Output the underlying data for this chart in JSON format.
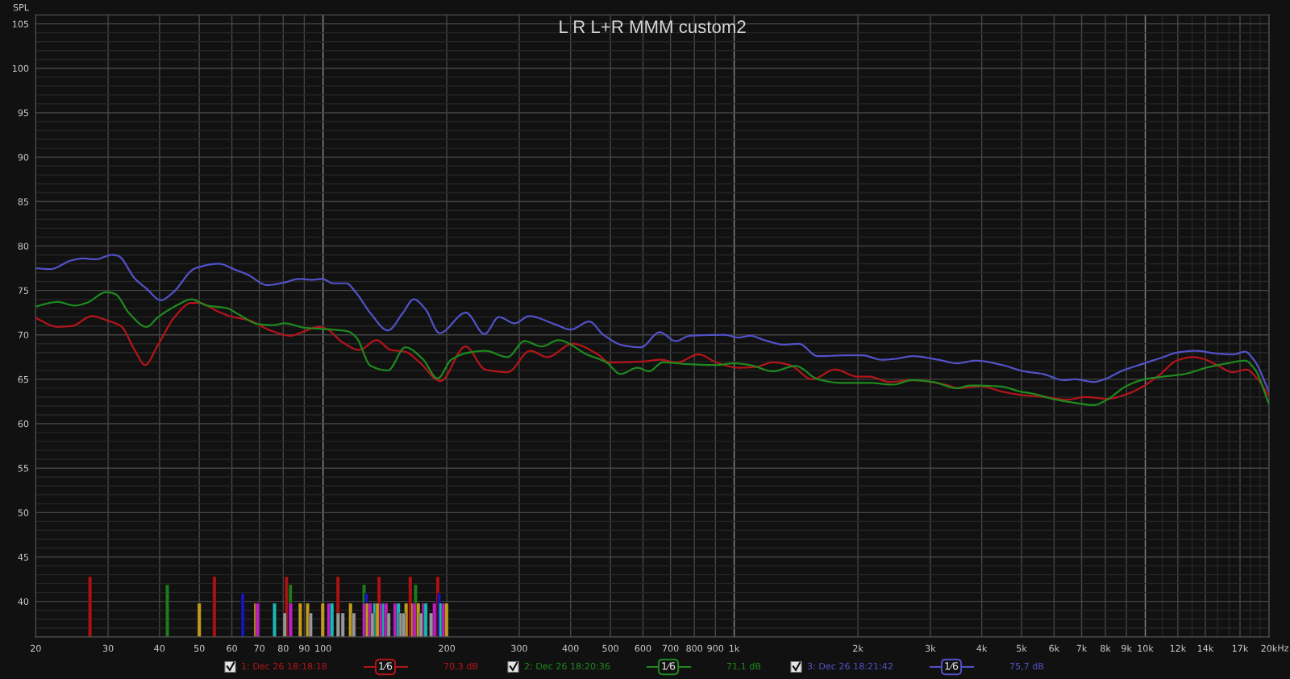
{
  "chart_data": {
    "type": "line",
    "title": "L R L+R MMM custom2",
    "ylabel": "SPL",
    "xlabel": "Hz",
    "log": "x",
    "xlim": [
      20,
      20000
    ],
    "ylim": [
      36,
      106
    ],
    "grid": true,
    "legend": "bottom",
    "xticks": [
      20,
      30,
      40,
      50,
      60,
      70,
      80,
      90,
      100,
      200,
      300,
      400,
      500,
      600,
      700,
      800,
      900,
      {
        "value": 1000,
        "label": "1k"
      },
      {
        "value": 2000,
        "label": "2k"
      },
      {
        "value": 3000,
        "label": "3k"
      },
      {
        "value": 4000,
        "label": "4k"
      },
      {
        "value": 5000,
        "label": "5k"
      },
      {
        "value": 6000,
        "label": "6k"
      },
      {
        "value": 7000,
        "label": "7k"
      },
      {
        "value": 8000,
        "label": "8k"
      },
      {
        "value": 9000,
        "label": "9k"
      },
      {
        "value": 10000,
        "label": "10k"
      },
      {
        "value": 11000,
        "label": null
      },
      {
        "value": 12000,
        "label": "12k"
      },
      {
        "value": 13000,
        "label": null
      },
      {
        "value": 14000,
        "label": "14k"
      },
      {
        "value": 15000,
        "label": null
      },
      {
        "value": 16000,
        "label": null
      },
      {
        "value": 17000,
        "label": "17k"
      },
      {
        "value": 18000,
        "label": null
      },
      {
        "value": 19000,
        "label": null
      },
      {
        "value": 20000,
        "label": "20k"
      }
    ],
    "yticks": [
      {
        "value": 37,
        "label": null
      },
      {
        "value": 38,
        "label": null
      },
      {
        "value": 39,
        "label": null
      },
      40,
      {
        "value": 41,
        "label": null
      },
      {
        "value": 42,
        "label": null
      },
      {
        "value": 43,
        "label": null
      },
      {
        "value": 44,
        "label": null
      },
      45,
      {
        "value": 46,
        "label": null
      },
      {
        "value": 47,
        "label": null
      },
      {
        "value": 48,
        "label": null
      },
      {
        "value": 49,
        "label": null
      },
      50,
      {
        "value": 51,
        "label": null
      },
      {
        "value": 52,
        "label": null
      },
      {
        "value": 53,
        "label": null
      },
      {
        "value": 54,
        "label": null
      },
      55,
      {
        "value": 56,
        "label": null
      },
      {
        "value": 57,
        "label": null
      },
      {
        "value": 58,
        "label": null
      },
      {
        "value": 59,
        "label": null
      },
      60,
      {
        "value": 61,
        "label": null
      },
      {
        "value": 62,
        "label": null
      },
      {
        "value": 63,
        "label": null
      },
      {
        "value": 64,
        "label": null
      },
      65,
      {
        "value": 66,
        "label": null
      },
      {
        "value": 67,
        "label": null
      },
      {
        "value": 68,
        "label": null
      },
      {
        "value": 69,
        "label": null
      },
      70,
      {
        "value": 71,
        "label": null
      },
      {
        "value": 72,
        "label": null
      },
      {
        "value": 73,
        "label": null
      },
      {
        "value": 74,
        "label": null
      },
      75,
      {
        "value": 76,
        "label": null
      },
      {
        "value": 77,
        "label": null
      },
      {
        "value": 78,
        "label": null
      },
      {
        "value": 79,
        "label": null
      },
      80,
      {
        "value": 81,
        "label": null
      },
      {
        "value": 82,
        "label": null
      },
      {
        "value": 83,
        "label": null
      },
      {
        "value": 84,
        "label": null
      },
      85,
      {
        "value": 86,
        "label": null
      },
      {
        "value": 87,
        "label": null
      },
      {
        "value": 88,
        "label": null
      },
      {
        "value": 89,
        "label": null
      },
      90,
      {
        "value": 91,
        "label": null
      },
      {
        "value": 92,
        "label": null
      },
      {
        "value": 93,
        "label": null
      },
      {
        "value": 94,
        "label": null
      },
      95,
      {
        "value": 96,
        "label": null
      },
      {
        "value": 97,
        "label": null
      },
      {
        "value": 98,
        "label": null
      },
      {
        "value": 99,
        "label": null
      },
      100,
      {
        "value": 101,
        "label": null
      },
      {
        "value": 102,
        "label": null
      },
      {
        "value": 103,
        "label": null
      },
      {
        "value": 104,
        "label": null
      },
      105
    ],
    "annotations": [
      "1⁄6",
      "70,3 dB",
      "1⁄6",
      "71,1 dB",
      "1⁄6",
      "75,7 dB"
    ],
    "series": [
      {
        "name": "1: Dec 26 18:18:18",
        "color": "#b3151a",
        "x": [
          20,
          22.6,
          24.5,
          27.4,
          29.9,
          32.2,
          34.9,
          36.9,
          39.7,
          43.7,
          47.8,
          49.7,
          55.7,
          59.4,
          66.5,
          74.4,
          83.3,
          88.8,
          97.8,
          102.6,
          111.2,
          122.5,
          134.9,
          146.2,
          158.4,
          171.8,
          193,
          222,
          248,
          281,
          319,
          351,
          405,
          466,
          497,
          600,
          660,
          726,
          819,
          905,
          1027,
          1129,
          1242,
          1366,
          1549,
          1758,
          1994,
          2122,
          2393,
          2718,
          3328,
          3482,
          3987,
          4494,
          5066,
          5715,
          6444,
          7158,
          8073,
          9100,
          9958,
          10896,
          11924,
          13048,
          13854,
          14932,
          16342,
          17616,
          18706,
          20000
        ],
        "values": [
          71.9,
          70.9,
          71.0,
          72.1,
          71.6,
          71.0,
          68.2,
          66.6,
          68.9,
          72.1,
          73.6,
          73.6,
          72.6,
          72.1,
          71.6,
          70.5,
          69.9,
          70.3,
          70.9,
          70.6,
          69.2,
          68.3,
          69.4,
          68.3,
          68.1,
          66.9,
          64.8,
          68.7,
          66.1,
          65.8,
          68.2,
          67.5,
          69.0,
          67.8,
          66.9,
          67.0,
          67.2,
          66.9,
          67.8,
          66.9,
          66.3,
          66.4,
          66.9,
          66.6,
          65.0,
          66.1,
          65.3,
          65.3,
          64.7,
          64.9,
          64.3,
          64.0,
          64.2,
          63.6,
          63.2,
          63.0,
          62.7,
          63.0,
          62.8,
          63.4,
          64.3,
          65.6,
          67.1,
          67.5,
          67.3,
          66.6,
          65.8,
          66.1,
          65.1,
          63.1
        ]
      },
      {
        "name": "2: Dec 26 18:20:36",
        "color": "#1e8a1e",
        "x": [
          20,
          22.6,
          24.9,
          26.6,
          29.7,
          31.2,
          33.8,
          37.2,
          39.7,
          44.4,
          47.8,
          52.2,
          58.4,
          62.3,
          69.7,
          75.6,
          80.6,
          90.2,
          104.3,
          114.8,
          120.5,
          130.6,
          143.8,
          158.5,
          174.6,
          190,
          205,
          225.6,
          248,
          281,
          309,
          340,
          374,
          438,
          489,
          529,
          582,
          620,
          671,
          773,
          905,
          996,
          1094,
          1242,
          1409,
          1599,
          1814,
          2122,
          2429,
          2718,
          3043,
          3482,
          3754,
          4426,
          4990,
          5300,
          6068,
          6638,
          7489,
          8073,
          8966,
          9958,
          11062,
          12474,
          14066,
          15862,
          17483,
          18426,
          20000
        ],
        "values": [
          73.2,
          73.7,
          73.3,
          73.6,
          74.8,
          74.6,
          72.4,
          70.9,
          72.0,
          73.4,
          74.0,
          73.3,
          73.0,
          72.3,
          71.2,
          71.1,
          71.3,
          70.8,
          70.6,
          70.4,
          69.7,
          66.5,
          66.0,
          68.6,
          67.3,
          65.1,
          67.2,
          68.0,
          68.2,
          67.5,
          69.3,
          68.7,
          69.4,
          67.8,
          66.9,
          65.6,
          66.3,
          65.9,
          66.9,
          66.7,
          66.6,
          66.8,
          66.6,
          65.9,
          66.5,
          65.0,
          64.6,
          64.6,
          64.4,
          64.9,
          64.7,
          64.0,
          64.3,
          64.2,
          63.6,
          63.4,
          62.7,
          62.4,
          62.1,
          62.7,
          64.2,
          65.0,
          65.3,
          65.6,
          66.3,
          66.8,
          67.1,
          66.2,
          62.2
        ]
      },
      {
        "name": "3: Dec 26 18:21:42",
        "color": "#5252c8",
        "x": [
          20,
          21.7,
          24.5,
          26.1,
          27.9,
          30.7,
          31.7,
          34.9,
          37.2,
          40.3,
          43.0,
          48.9,
          55.7,
          61.3,
          65.4,
          73.2,
          80.6,
          87.4,
          93.9,
          99.3,
          106,
          113.9,
          120.5,
          130.6,
          143.8,
          156,
          166.2,
          177.4,
          192,
          222.6,
          247,
          267.8,
          292.5,
          317,
          366,
          400,
          444,
          481,
          539,
          593,
          659,
          720,
          780,
          946,
          1026,
          1094,
          1185,
          1326,
          1437,
          1596,
          1890,
          2047,
          2290,
          2466,
          2718,
          3135,
          3482,
          3868,
          4494,
          5066,
          5628,
          6346,
          6740,
          7489,
          7950,
          8834,
          9958,
          11062,
          11924,
          13244,
          14932,
          16342,
          17483,
          18426,
          20000
        ],
        "values": [
          77.5,
          77.4,
          78.4,
          78.6,
          78.5,
          79.0,
          78.9,
          76.3,
          75.2,
          73.9,
          74.7,
          77.5,
          78.0,
          77.3,
          76.8,
          75.6,
          75.9,
          76.3,
          76.2,
          76.3,
          75.8,
          75.8,
          74.7,
          72.4,
          70.5,
          72.4,
          74.0,
          72.9,
          70.2,
          72.5,
          70.1,
          72.0,
          71.3,
          72.1,
          71.2,
          70.6,
          71.5,
          70.0,
          68.8,
          68.6,
          70.3,
          69.3,
          69.9,
          70.0,
          69.7,
          69.9,
          69.4,
          68.9,
          69.0,
          67.6,
          67.7,
          67.7,
          67.2,
          67.3,
          67.6,
          67.2,
          66.8,
          67.1,
          66.6,
          65.9,
          65.6,
          64.9,
          65.0,
          64.7,
          65.0,
          66.0,
          66.8,
          67.5,
          68.0,
          68.2,
          67.9,
          67.8,
          68.1,
          67.1,
          63.6
        ]
      },
      {
        "type": "bar",
        "x": [
          27.1,
          41.8,
          50.0,
          54.4,
          63.8,
          68.6,
          69.3,
          76.2,
          80.7,
          81.5,
          83.3,
          83.4,
          88.0,
          91.7,
          93.3,
          99.8,
          103.3,
          105.1,
          108.7,
          108.8,
          111.7,
          116.6,
          118.8,
          125.8,
          125.9,
          127.5,
          128.1,
          130.2,
          131.8,
          133.6,
          135.6,
          136.8,
          138.5,
          140.6,
          142.3,
          144.4,
          149.7,
          152.5,
          154.6,
          157.1,
          159.2,
          162.9,
          165.3,
          167.0,
          167.9,
          170.4,
          173.0,
          175.6,
          177.7,
          183.1,
          186.5,
          190.1,
          191.6,
          193.5,
          196.5,
          199.7
        ],
        "values": [
          42.8,
          41.9,
          39.8,
          42.8,
          40.9,
          39.8,
          39.8,
          39.8,
          38.7,
          42.8,
          41.9,
          39.8,
          39.8,
          39.8,
          38.7,
          39.8,
          39.8,
          39.8,
          42.8,
          38.7,
          38.7,
          39.8,
          38.7,
          41.9,
          39.8,
          40.9,
          39.8,
          39.8,
          38.7,
          39.8,
          39.8,
          42.8,
          39.8,
          39.8,
          39.8,
          38.7,
          39.8,
          39.8,
          38.7,
          38.7,
          39.8,
          42.8,
          39.8,
          39.8,
          41.9,
          39.8,
          38.7,
          39.8,
          39.8,
          38.7,
          39.8,
          42.8,
          40.9,
          39.8,
          39.8,
          39.8
        ],
        "colors": [
          "#a81414",
          "#1e7a1e",
          "#c09a1e",
          "#a81414",
          "#1818b4",
          "#c09a1e",
          "#c01ec0",
          "#1eb4b4",
          "#969696",
          "#a81414",
          "#1e7a1e",
          "#c01ec0",
          "#c09a1e",
          "#c09a1e",
          "#969696",
          "#c09a1e",
          "#c01ec0",
          "#1eb4b4",
          "#a81414",
          "#969696",
          "#969696",
          "#c09a1e",
          "#969696",
          "#1e7a1e",
          "#c01ec0",
          "#1818b4",
          "#c09a1e",
          "#c01ec0",
          "#969696",
          "#1eb4b4",
          "#c09a1e",
          "#a81414",
          "#c01ec0",
          "#1eb4b4",
          "#c01ec0",
          "#969696",
          "#c01ec0",
          "#1eb4b4",
          "#969696",
          "#969696",
          "#c09a1e",
          "#a81414",
          "#c09a1e",
          "#c01ec0",
          "#1e7a1e",
          "#c09a1e",
          "#969696",
          "#c01ec0",
          "#1eb4b4",
          "#969696",
          "#c01ec0",
          "#a81414",
          "#1818b4",
          "#1eb4b4",
          "#c01ec0",
          "#c09a1e"
        ]
      }
    ]
  }
}
